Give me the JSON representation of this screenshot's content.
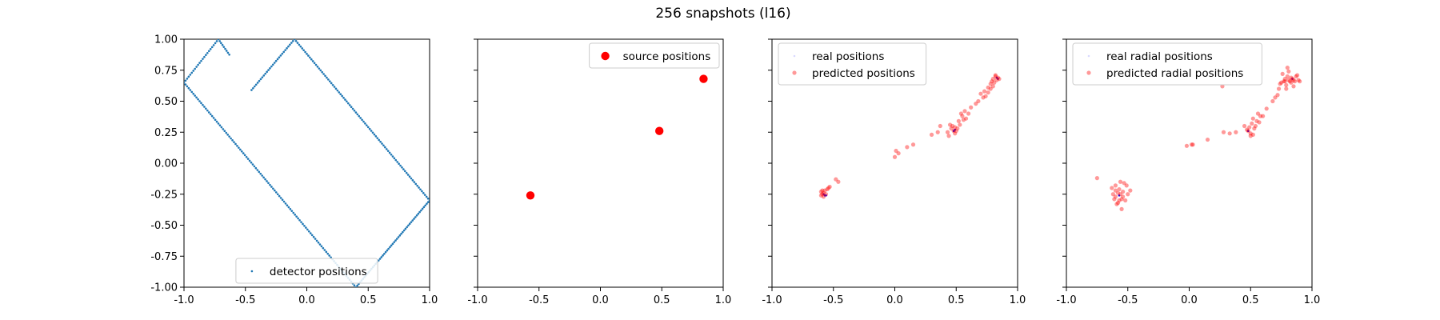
{
  "title": "256 snapshots (l16)",
  "chart_data": [
    {
      "type": "scatter",
      "xlim": [
        -1.0,
        1.0
      ],
      "ylim": [
        -1.0,
        1.0
      ],
      "xticks": [
        "-1.0",
        "-0.5",
        "0.0",
        "0.5",
        "1.0"
      ],
      "yticks": [
        "-1.00",
        "-0.75",
        "-0.50",
        "-0.25",
        "0.00",
        "0.25",
        "0.50",
        "0.75",
        "1.00"
      ],
      "legend_position": "lower-center",
      "series": [
        {
          "name": "detector positions",
          "color": "#1f77b4",
          "marker": "small-dot",
          "segments": [
            {
              "from": [
                -1.0,
                0.65
              ],
              "to": [
                -0.72,
                1.0
              ],
              "count": 22
            },
            {
              "from": [
                -0.72,
                1.0
              ],
              "to": [
                -0.62,
                0.86
              ],
              "count": 9
            },
            {
              "from": [
                -0.45,
                0.59
              ],
              "to": [
                -0.1,
                1.0
              ],
              "count": 28
            },
            {
              "from": [
                -0.1,
                1.0
              ],
              "to": [
                1.0,
                -0.3
              ],
              "count": 88
            },
            {
              "from": [
                1.0,
                -0.3
              ],
              "to": [
                0.4,
                -1.0
              ],
              "count": 52
            },
            {
              "from": [
                0.4,
                -1.0
              ],
              "to": [
                -1.0,
                0.65
              ],
              "count": 110
            }
          ]
        }
      ]
    },
    {
      "type": "scatter",
      "xlim": [
        -1.0,
        1.0
      ],
      "ylim": [
        -1.0,
        1.0
      ],
      "xticks": [
        "-1.0",
        "-0.5",
        "0.0",
        "0.5",
        "1.0"
      ],
      "legend_position": "upper-right",
      "series": [
        {
          "name": "source positions",
          "color": "#ff0000",
          "marker": "large-dot",
          "points": [
            [
              -0.57,
              -0.26
            ],
            [
              0.48,
              0.26
            ],
            [
              0.84,
              0.68
            ]
          ]
        }
      ]
    },
    {
      "type": "scatter",
      "xlim": [
        -1.0,
        1.0
      ],
      "ylim": [
        -1.0,
        1.0
      ],
      "xticks": [
        "-1.0",
        "-0.5",
        "0.0",
        "0.5",
        "1.0"
      ],
      "legend_position": "upper-left",
      "series": [
        {
          "name": "real positions",
          "color": "#0000ff",
          "marker": "small-dot",
          "points": [
            [
              -0.57,
              -0.26
            ],
            [
              -0.58,
              -0.25
            ],
            [
              -0.56,
              -0.26
            ],
            [
              0.48,
              0.26
            ],
            [
              0.49,
              0.27
            ],
            [
              0.84,
              0.68
            ],
            [
              0.83,
              0.69
            ]
          ]
        },
        {
          "name": "predicted positions",
          "color": "#ff0000",
          "marker": "medium-dot",
          "points": [
            [
              -0.59,
              -0.25
            ],
            [
              -0.58,
              -0.24
            ],
            [
              -0.6,
              -0.23
            ],
            [
              -0.57,
              -0.22
            ],
            [
              -0.55,
              -0.21
            ],
            [
              -0.53,
              -0.19
            ],
            [
              -0.58,
              -0.27
            ],
            [
              -0.6,
              -0.26
            ],
            [
              -0.56,
              -0.25
            ],
            [
              -0.59,
              -0.22
            ],
            [
              -0.54,
              -0.2
            ],
            [
              -0.48,
              -0.13
            ],
            [
              -0.46,
              -0.15
            ],
            [
              0.0,
              0.05
            ],
            [
              0.01,
              0.1
            ],
            [
              0.03,
              0.08
            ],
            [
              0.1,
              0.13
            ],
            [
              0.15,
              0.15
            ],
            [
              0.3,
              0.23
            ],
            [
              0.35,
              0.25
            ],
            [
              0.37,
              0.3
            ],
            [
              0.43,
              0.25
            ],
            [
              0.46,
              0.28
            ],
            [
              0.48,
              0.26
            ],
            [
              0.5,
              0.26
            ],
            [
              0.47,
              0.3
            ],
            [
              0.49,
              0.24
            ],
            [
              0.51,
              0.28
            ],
            [
              0.45,
              0.31
            ],
            [
              0.52,
              0.34
            ],
            [
              0.55,
              0.38
            ],
            [
              0.54,
              0.4
            ],
            [
              0.57,
              0.42
            ],
            [
              0.58,
              0.36
            ],
            [
              0.6,
              0.4
            ],
            [
              0.62,
              0.45
            ],
            [
              0.66,
              0.48
            ],
            [
              0.56,
              0.35
            ],
            [
              0.53,
              0.31
            ],
            [
              0.44,
              0.22
            ],
            [
              0.49,
              0.29
            ],
            [
              0.72,
              0.53
            ],
            [
              0.73,
              0.58
            ],
            [
              0.74,
              0.54
            ],
            [
              0.76,
              0.61
            ],
            [
              0.78,
              0.64
            ],
            [
              0.79,
              0.66
            ],
            [
              0.8,
              0.68
            ],
            [
              0.82,
              0.7
            ],
            [
              0.81,
              0.65
            ],
            [
              0.83,
              0.67
            ],
            [
              0.84,
              0.69
            ],
            [
              0.82,
              0.71
            ],
            [
              0.8,
              0.62
            ],
            [
              0.78,
              0.6
            ],
            [
              0.85,
              0.68
            ],
            [
              0.76,
              0.57
            ],
            [
              0.7,
              0.56
            ],
            [
              0.68,
              0.5
            ]
          ]
        }
      ]
    },
    {
      "type": "scatter",
      "xlim": [
        -1.0,
        1.0
      ],
      "ylim": [
        -1.0,
        1.0
      ],
      "xticks": [
        "-1.0",
        "-0.5",
        "0.0",
        "0.5",
        "1.0"
      ],
      "legend_position": "upper-left",
      "series": [
        {
          "name": "real radial positions",
          "color": "#0000ff",
          "marker": "small-dot",
          "points": [
            [
              -0.57,
              -0.26
            ],
            [
              0.48,
              0.26
            ],
            [
              0.84,
              0.68
            ]
          ]
        },
        {
          "name": "predicted radial positions",
          "color": "#ff0000",
          "marker": "medium-dot",
          "points": [
            [
              -0.75,
              -0.12
            ],
            [
              -0.63,
              -0.2
            ],
            [
              -0.6,
              -0.22
            ],
            [
              -0.58,
              -0.24
            ],
            [
              -0.56,
              -0.25
            ],
            [
              -0.54,
              -0.23
            ],
            [
              -0.6,
              -0.27
            ],
            [
              -0.62,
              -0.25
            ],
            [
              -0.57,
              -0.3
            ],
            [
              -0.55,
              -0.29
            ],
            [
              -0.52,
              -0.3
            ],
            [
              -0.58,
              -0.32
            ],
            [
              -0.55,
              -0.37
            ],
            [
              -0.5,
              -0.25
            ],
            [
              -0.48,
              -0.22
            ],
            [
              -0.53,
              -0.16
            ],
            [
              -0.51,
              -0.18
            ],
            [
              -0.56,
              -0.15
            ],
            [
              -0.6,
              -0.18
            ],
            [
              -0.57,
              -0.21
            ],
            [
              -0.54,
              -0.27
            ],
            [
              -0.61,
              -0.29
            ],
            [
              -0.59,
              -0.33
            ],
            [
              -0.02,
              0.14
            ],
            [
              0.02,
              0.15
            ],
            [
              0.03,
              0.15
            ],
            [
              0.15,
              0.19
            ],
            [
              0.28,
              0.25
            ],
            [
              0.33,
              0.24
            ],
            [
              0.38,
              0.25
            ],
            [
              0.27,
              0.62
            ],
            [
              0.45,
              0.3
            ],
            [
              0.48,
              0.26
            ],
            [
              0.5,
              0.22
            ],
            [
              0.52,
              0.23
            ],
            [
              0.49,
              0.29
            ],
            [
              0.51,
              0.32
            ],
            [
              0.5,
              0.24
            ],
            [
              0.47,
              0.27
            ],
            [
              0.53,
              0.28
            ],
            [
              0.54,
              0.3
            ],
            [
              0.55,
              0.34
            ],
            [
              0.57,
              0.33
            ],
            [
              0.52,
              0.36
            ],
            [
              0.58,
              0.38
            ],
            [
              0.6,
              0.38
            ],
            [
              0.56,
              0.4
            ],
            [
              0.63,
              0.44
            ],
            [
              0.68,
              0.5
            ],
            [
              0.7,
              0.53
            ],
            [
              0.72,
              0.55
            ],
            [
              0.73,
              0.6
            ],
            [
              0.75,
              0.65
            ],
            [
              0.77,
              0.66
            ],
            [
              0.78,
              0.68
            ],
            [
              0.79,
              0.63
            ],
            [
              0.8,
              0.7
            ],
            [
              0.81,
              0.67
            ],
            [
              0.82,
              0.66
            ],
            [
              0.83,
              0.65
            ],
            [
              0.84,
              0.68
            ],
            [
              0.85,
              0.67
            ],
            [
              0.86,
              0.66
            ],
            [
              0.87,
              0.7
            ],
            [
              0.88,
              0.71
            ],
            [
              0.89,
              0.67
            ],
            [
              0.9,
              0.66
            ],
            [
              0.81,
              0.74
            ],
            [
              0.8,
              0.77
            ],
            [
              0.76,
              0.72
            ],
            [
              0.74,
              0.64
            ],
            [
              0.79,
              0.6
            ],
            [
              0.85,
              0.62
            ],
            [
              0.83,
              0.69
            ],
            [
              0.78,
              0.66
            ]
          ]
        }
      ]
    }
  ]
}
